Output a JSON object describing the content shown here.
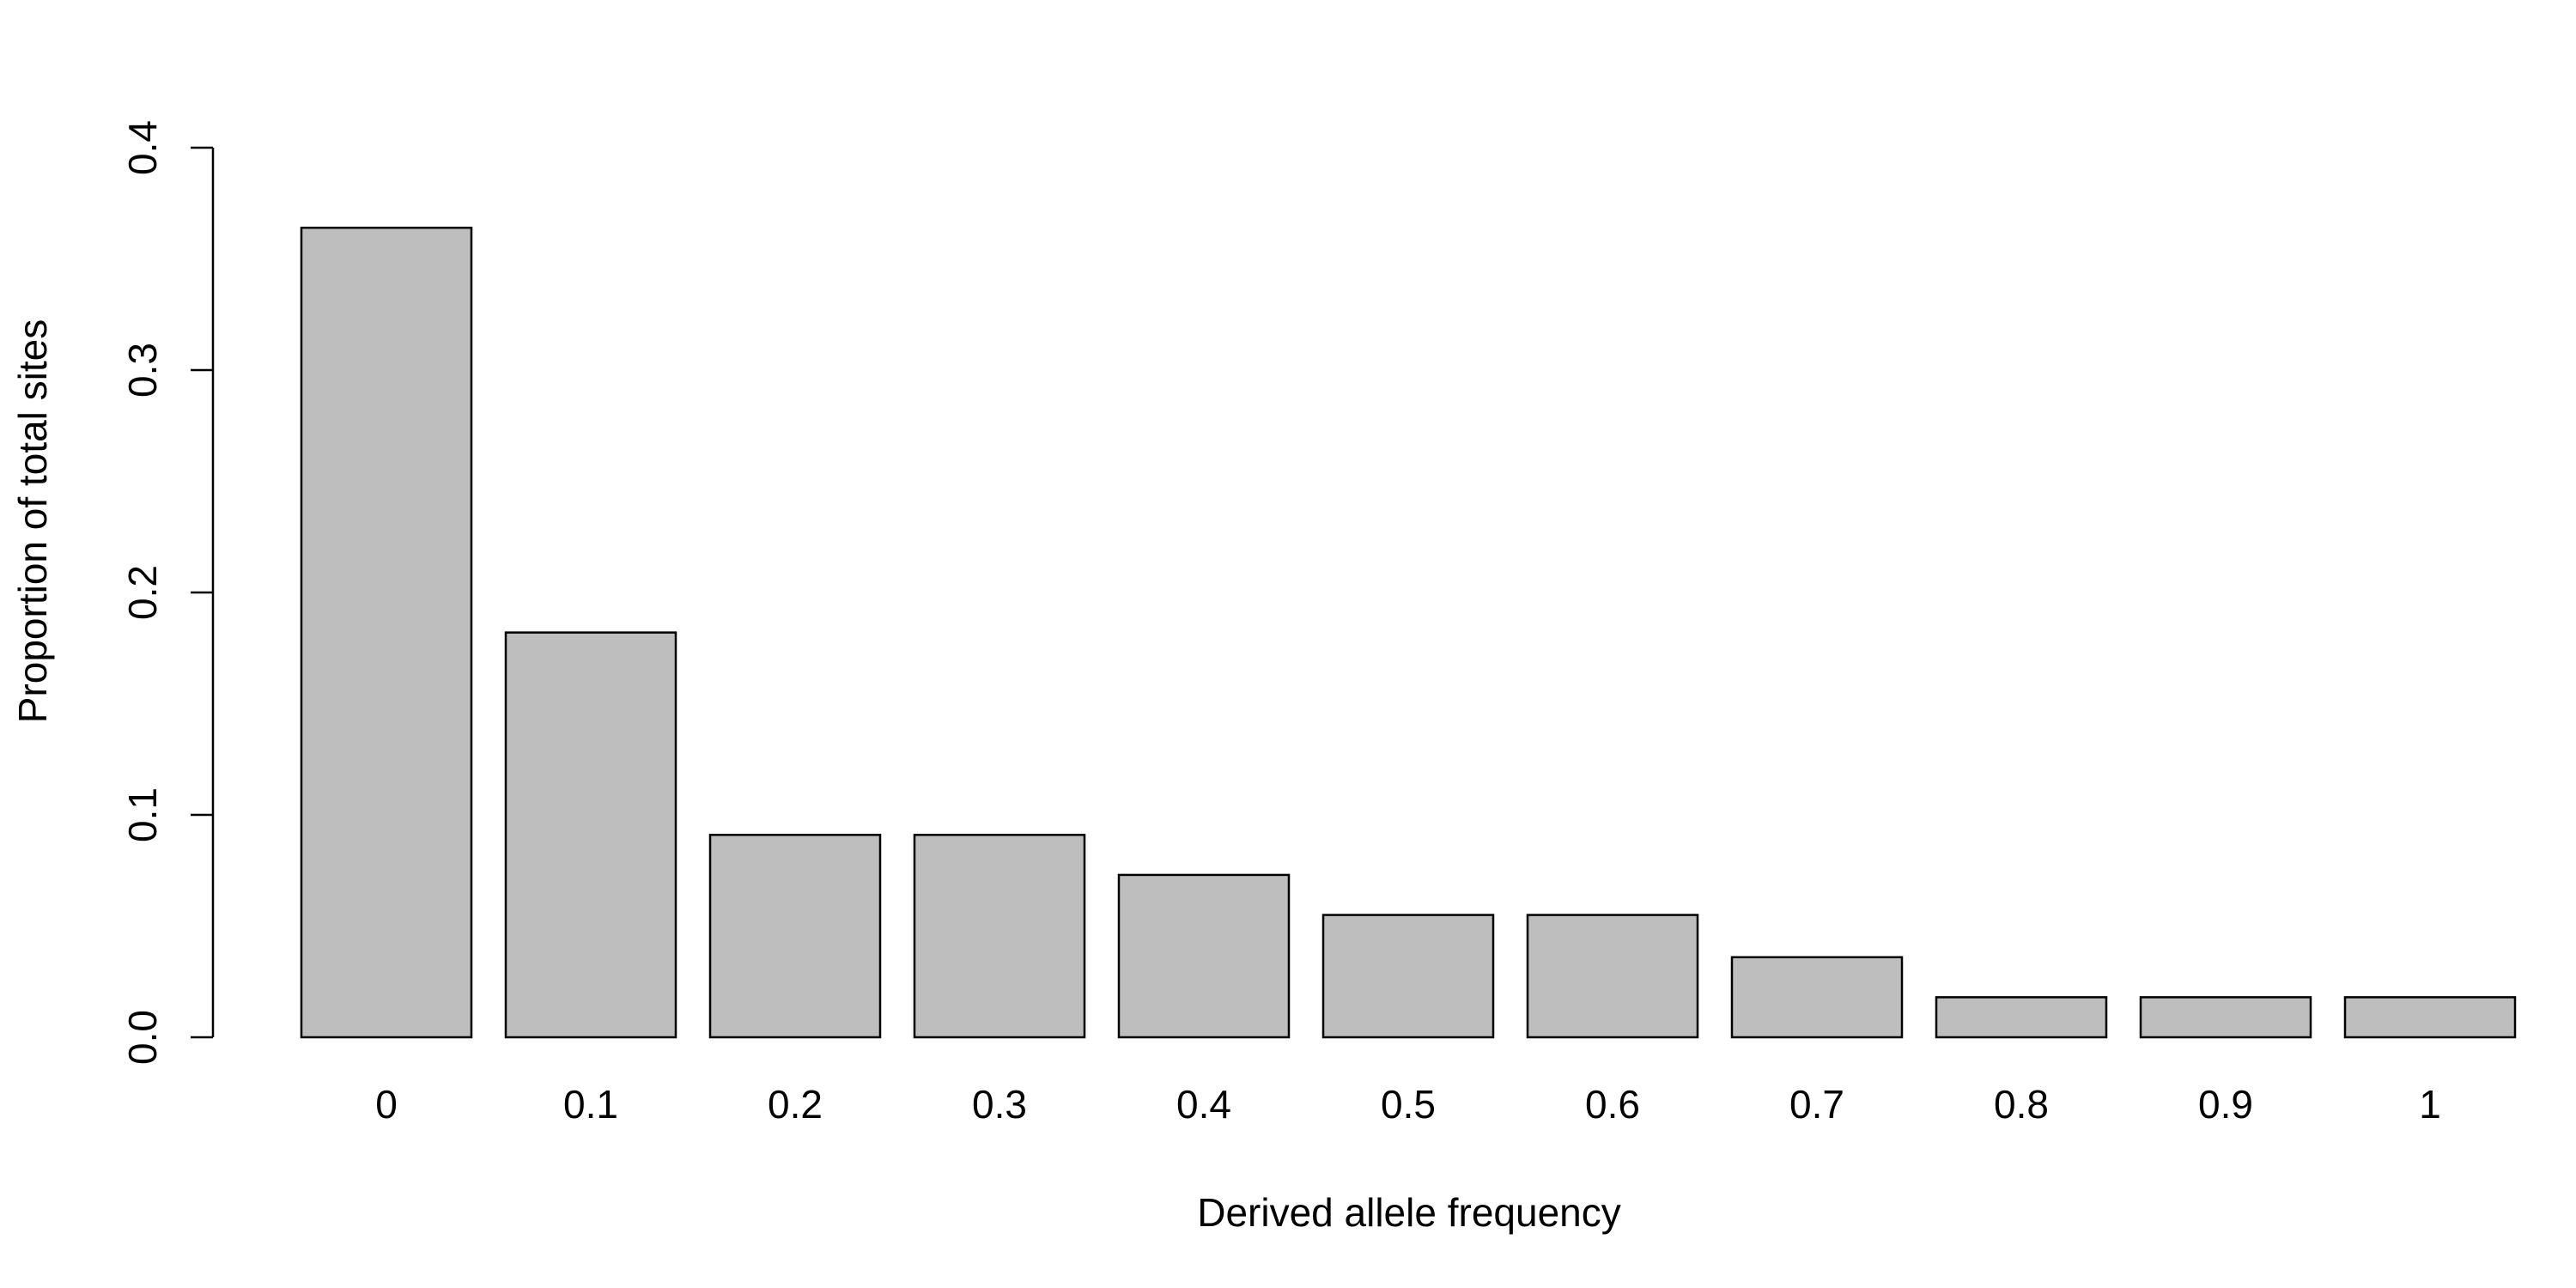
{
  "chart_data": {
    "type": "bar",
    "title": "",
    "xlabel": "Derived allele frequency",
    "ylabel": "Proportion of total sites",
    "categories": [
      "0",
      "0.1",
      "0.2",
      "0.3",
      "0.4",
      "0.5",
      "0.6",
      "0.7",
      "0.8",
      "0.9",
      "1"
    ],
    "values": [
      0.364,
      0.182,
      0.091,
      0.091,
      0.073,
      0.055,
      0.055,
      0.036,
      0.018,
      0.018,
      0.018
    ],
    "ylim": [
      0,
      0.4
    ],
    "yticks": [
      "0.0",
      "0.1",
      "0.2",
      "0.3",
      "0.4"
    ],
    "grid": false,
    "legend": "none",
    "bar_color": "#bebebe",
    "border_color": "#000000"
  }
}
